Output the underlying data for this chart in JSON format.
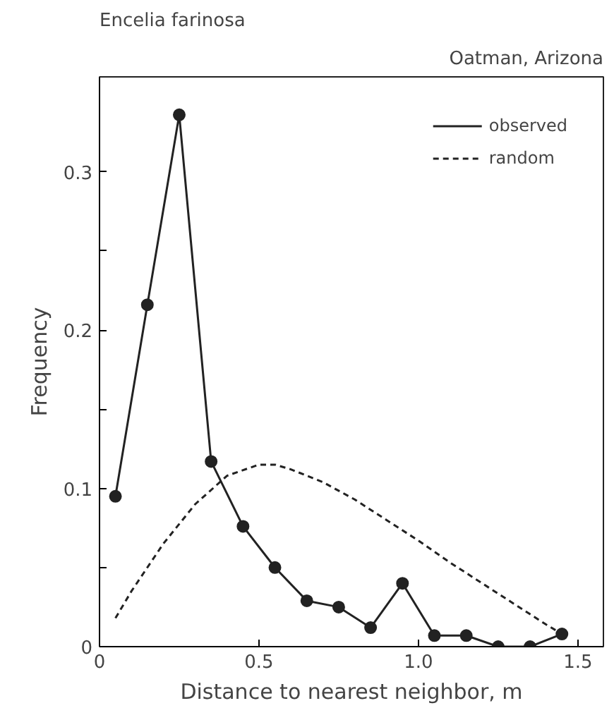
{
  "chart_data": {
    "type": "line",
    "title": "Encelia farinosa",
    "subtitle": "Oatman, Arizona",
    "xlabel": "Distance to nearest neighbor, m",
    "ylabel": "Frequency",
    "xlim": [
      0,
      1.58
    ],
    "ylim": [
      0,
      0.36
    ],
    "xticks": [
      0,
      0.5,
      {
        "value": 1.0,
        "label": "1.0"
      },
      1.5
    ],
    "yticks": [
      0,
      {
        "value": 0.05,
        "label": null
      },
      0.1,
      {
        "value": 0.15,
        "label": null
      },
      0.2,
      {
        "value": 0.25,
        "label": null
      },
      0.3
    ],
    "grid": false,
    "legend": "top right",
    "series": [
      {
        "name": "observed",
        "color": "#222222",
        "marker": "circle",
        "line_style": "solid",
        "x": [
          0.05,
          0.15,
          0.25,
          0.35,
          0.45,
          0.55,
          0.65,
          0.75,
          0.85,
          0.95,
          1.05,
          1.15,
          1.25,
          1.35,
          1.45
        ],
        "values": [
          0.095,
          0.216,
          0.336,
          0.117,
          0.076,
          0.05,
          0.029,
          0.025,
          0.012,
          0.04,
          0.007,
          0.007,
          0,
          0,
          0.008
        ]
      },
      {
        "name": "random",
        "color": "#222222",
        "marker": "none",
        "line_style": "dashed",
        "x": [
          0.05,
          0.1,
          0.2,
          0.3,
          0.4,
          0.5,
          0.55,
          0.6,
          0.7,
          0.8,
          0.9,
          1.0,
          1.1,
          1.2,
          1.3,
          1.4,
          1.45
        ],
        "values": [
          0.018,
          0.035,
          0.065,
          0.09,
          0.108,
          0.115,
          0.115,
          0.112,
          0.104,
          0.093,
          0.08,
          0.067,
          0.053,
          0.04,
          0.027,
          0.014,
          0.008
        ]
      }
    ]
  }
}
